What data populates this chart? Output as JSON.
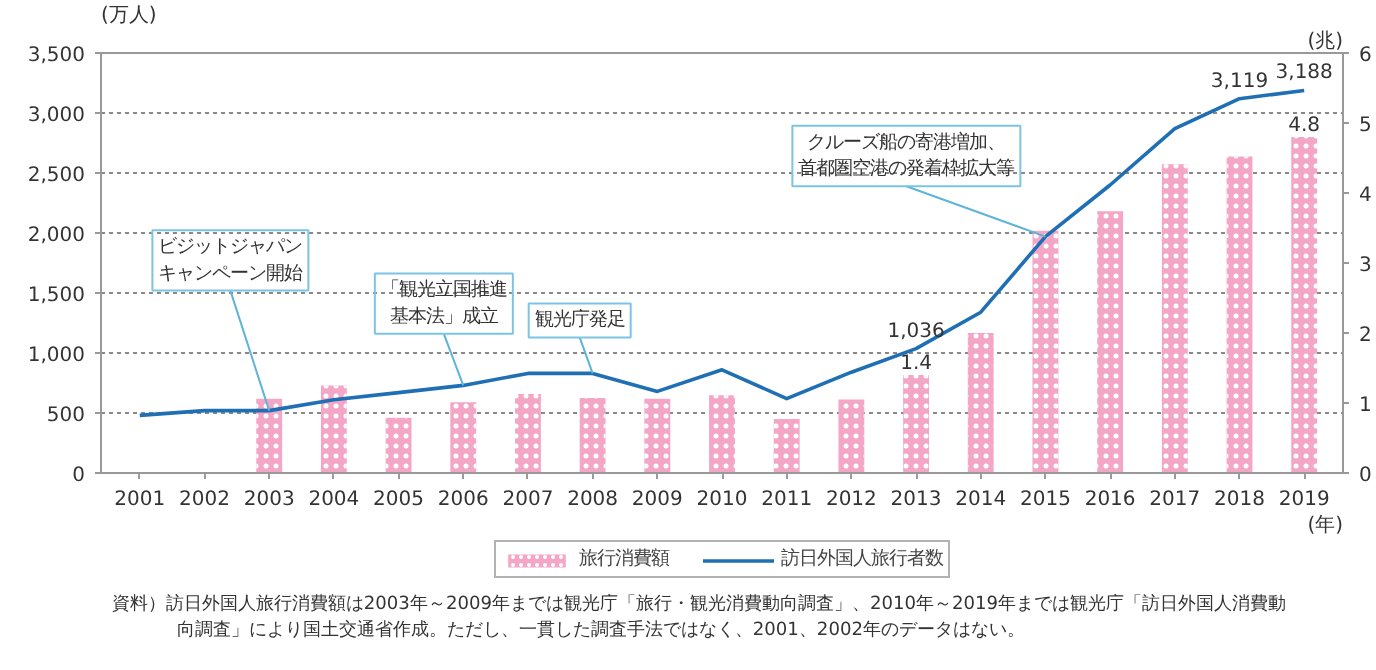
{
  "chart_data": {
    "type": "bar",
    "categories": [
      "2001",
      "2002",
      "2003",
      "2004",
      "2005",
      "2006",
      "2007",
      "2008",
      "2009",
      "2010",
      "2011",
      "2012",
      "2013",
      "2014",
      "2015",
      "2016",
      "2017",
      "2018",
      "2019"
    ],
    "xlabel": "(年)",
    "ylabel": "(万人)",
    "y2label": "(兆)",
    "ylim": [
      0,
      3500
    ],
    "yticks": [
      0,
      500,
      {
        "value": 1000,
        "label": "1,000"
      },
      {
        "value": 1500,
        "label": "1,500"
      },
      {
        "value": 2000,
        "label": "2,000"
      },
      {
        "value": 2500,
        "label": "2,500"
      },
      {
        "value": 3000,
        "label": "3,000"
      },
      {
        "value": 3500,
        "label": "3,500"
      }
    ],
    "y2lim": [
      0,
      6
    ],
    "y2ticks": [
      0,
      1,
      2,
      3,
      4,
      5,
      6
    ],
    "grid": "y",
    "legend": "bottom",
    "series": [
      {
        "name": "旅行消費額",
        "axis": "y2",
        "color": "#f4a6c6",
        "values": [
          null,
          null,
          1.06,
          1.25,
          0.79,
          1.01,
          1.13,
          1.07,
          1.06,
          1.11,
          0.77,
          1.05,
          1.4,
          2.0,
          3.46,
          3.74,
          4.41,
          4.52,
          4.8
        ],
        "value_labels": [
          null,
          null,
          null,
          null,
          null,
          null,
          null,
          null,
          null,
          null,
          null,
          null,
          "1.4",
          null,
          null,
          null,
          null,
          null,
          "4.8"
        ]
      },
      {
        "name": "訪日外国人旅行者数",
        "type": "line",
        "color": "#1f6fb4",
        "values": [
          480,
          520,
          520,
          610,
          670,
          730,
          830,
          830,
          680,
          860,
          620,
          840,
          1036,
          1340,
          1970,
          2400,
          2870,
          3119,
          3188
        ],
        "value_labels": [
          null,
          null,
          null,
          null,
          null,
          null,
          null,
          null,
          null,
          null,
          null,
          null,
          "1,036",
          null,
          null,
          null,
          null,
          "3,119",
          "3,188"
        ]
      }
    ],
    "annotations": [
      {
        "text": "ビジットジャパンキャンペーン開始",
        "x": "2003",
        "y": 520
      },
      {
        "text": "「観光立国推進基本法」成立",
        "x": "2006",
        "y": 730
      },
      {
        "text": "観光庁発足",
        "x": "2008",
        "y": 830
      },
      {
        "text": "クルーズ船の寄港増加、首都圏空港の発着枠拡大等",
        "x": "2015",
        "y": 1970
      },
      "資料）訪日外国人旅行消費額は2003年～2009年までは観光庁「旅行・観光消費動向調査」、2010年～2019年までは観光庁「訪日外国人消費動向調査」により国土交通省作成。ただし、一貫した調査手法ではなく、2001、2002年のデータはない。"
    ]
  }
}
